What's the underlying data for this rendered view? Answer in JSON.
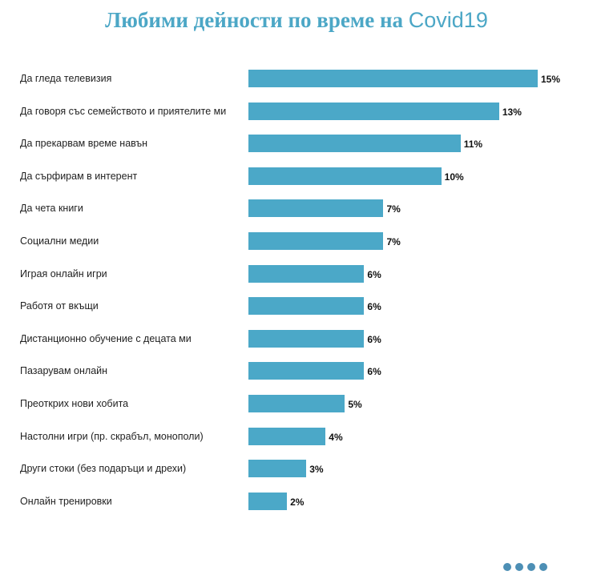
{
  "chart_data": {
    "type": "bar",
    "orientation": "horizontal",
    "title_part1": "Любими дейности по време на",
    "title_part2": "Covid19",
    "categories": [
      "Да гледа телевизия",
      "Да говоря със семейството и приятелите ми",
      "Да прекарвам време навън",
      "Да сърфирам в интерент",
      "Да чета книги",
      "Социални медии",
      "Играя онлайн игри",
      "Работя от вкъщи",
      "Дистанционно обучение с децата ми",
      "Пазарувам онлайн",
      "Преоткрих нови хобита",
      "Настолни игри (пр. скрабъл, монополи)",
      "Други стоки (без подаръци и дрехи)",
      "Онлайн тренировки"
    ],
    "values": [
      15,
      13,
      11,
      10,
      7,
      7,
      6,
      6,
      6,
      6,
      5,
      4,
      3,
      2
    ],
    "unit": "%",
    "bar_color": "#4ba8c8",
    "grid": false,
    "legend": "none"
  }
}
